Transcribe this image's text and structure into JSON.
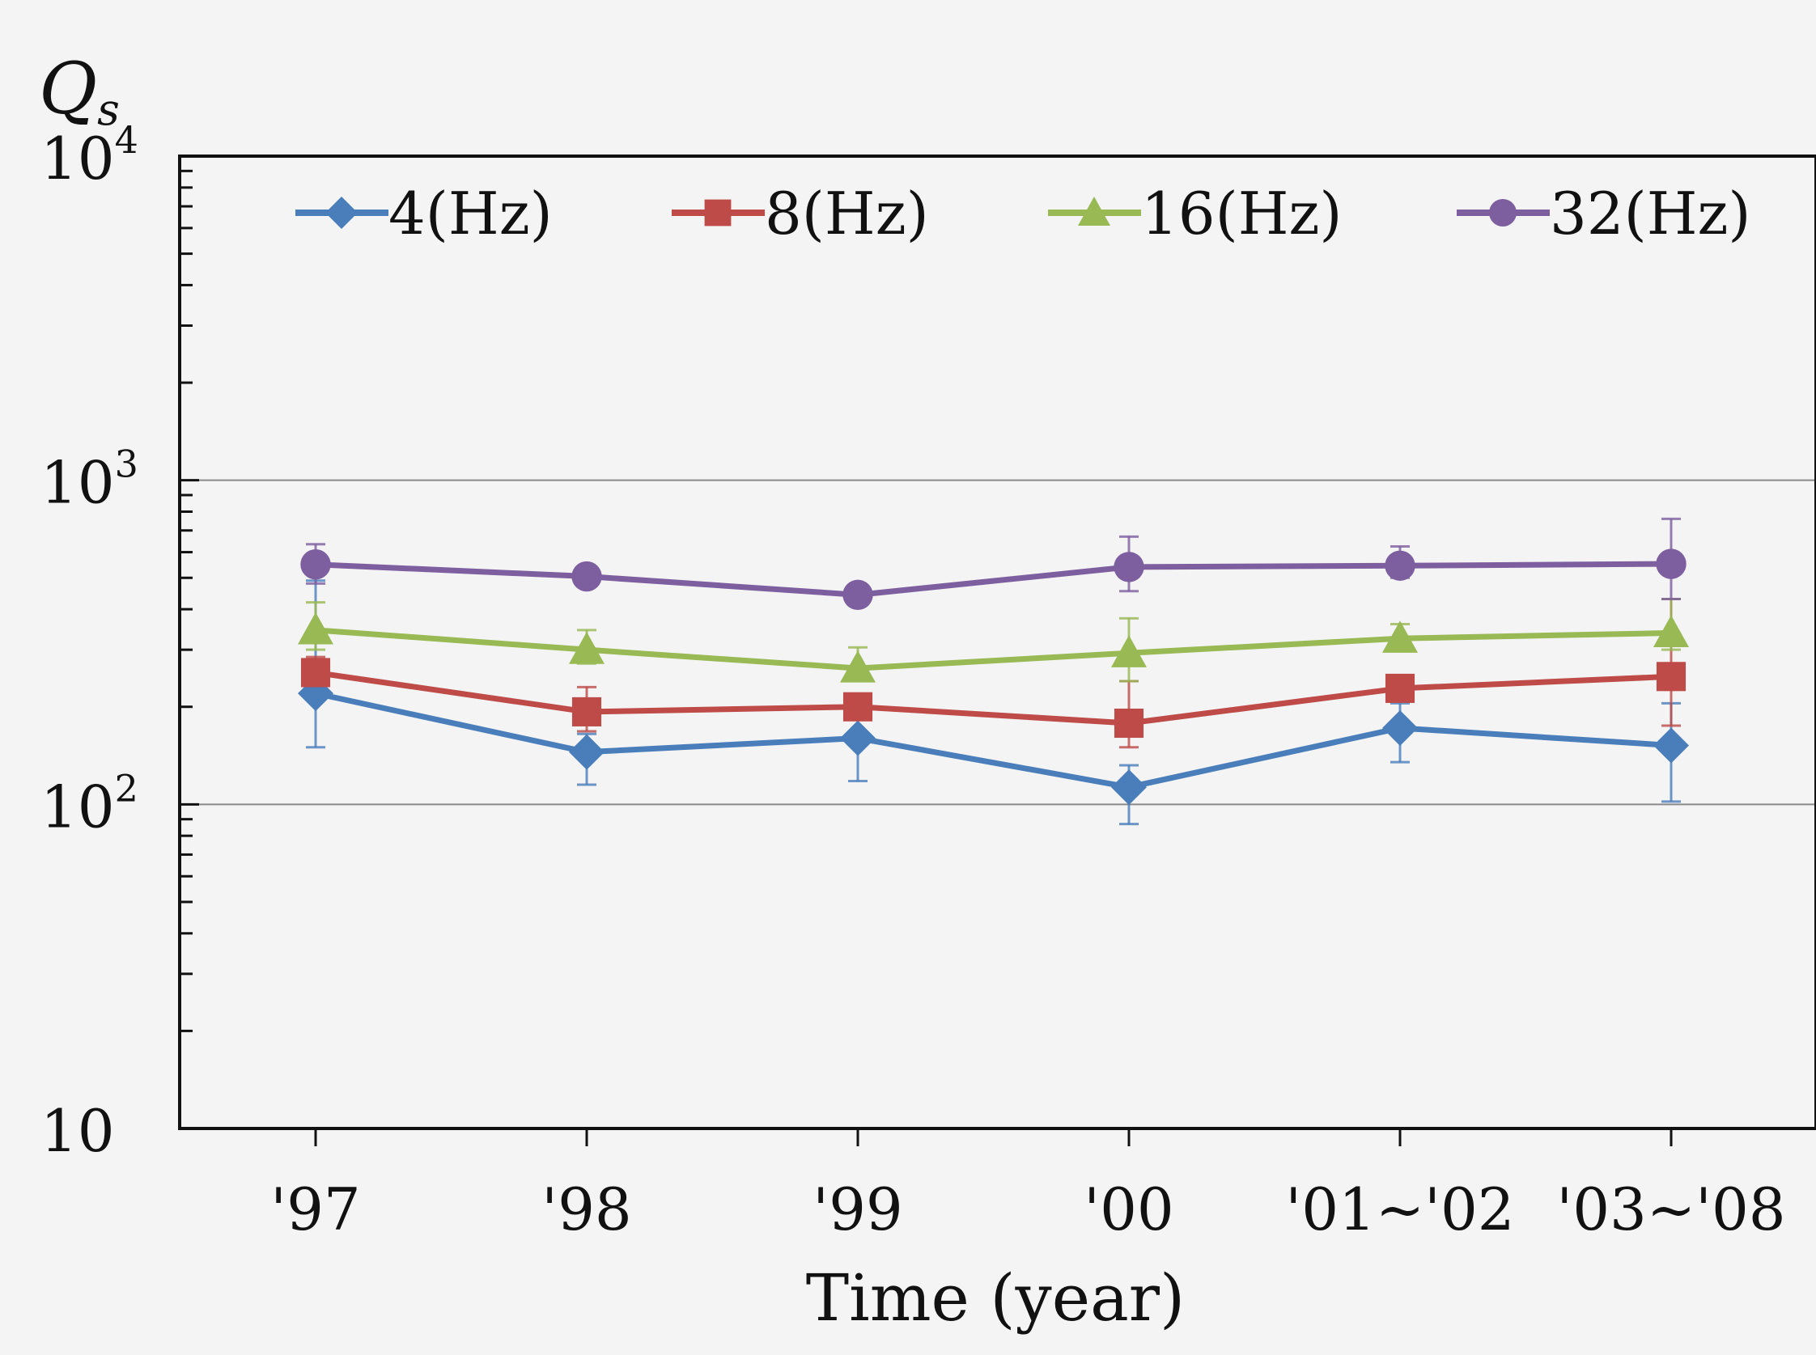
{
  "chart_data": {
    "type": "line",
    "ylabel_symbol": "Q",
    "ylabel_subscript": "s",
    "xlabel": "Time (year)",
    "y_scale": "log",
    "ylim": [
      10,
      10000
    ],
    "y_ticks": [
      {
        "value": 10,
        "base": "10",
        "exp": ""
      },
      {
        "value": 100,
        "base": "10",
        "exp": "2"
      },
      {
        "value": 1000,
        "base": "10",
        "exp": "3"
      },
      {
        "value": 10000,
        "base": "10",
        "exp": "4"
      }
    ],
    "categories": [
      "'97",
      "'98",
      "'99",
      "'00",
      "'01~'02",
      "'03~'08"
    ],
    "grid": "horizontal at 10^2 and 10^3",
    "legend_position": "top, inside plot",
    "series": [
      {
        "name": "4(Hz)",
        "color": "#4a7ebb",
        "marker": "diamond",
        "values": [
          220,
          145,
          160,
          113,
          172,
          152
        ],
        "err_low": [
          150,
          115,
          118,
          87,
          135,
          102
        ],
        "err_high": [
          490,
          165,
          190,
          132,
          205,
          205
        ]
      },
      {
        "name": "8(Hz)",
        "color": "#be4b48",
        "marker": "square",
        "values": [
          255,
          193,
          200,
          178,
          228,
          248
        ],
        "err_low": [
          220,
          168,
          185,
          150,
          215,
          175
        ],
        "err_high": [
          285,
          230,
          215,
          240,
          245,
          430
        ]
      },
      {
        "name": "16(Hz)",
        "color": "#98b954",
        "marker": "triangle",
        "values": [
          345,
          300,
          263,
          293,
          325,
          338
        ],
        "err_low": [
          300,
          272,
          240,
          240,
          305,
          300
        ],
        "err_high": [
          420,
          345,
          305,
          375,
          360,
          430
        ]
      },
      {
        "name": "32(Hz)",
        "color": "#7d5fa0",
        "marker": "circle",
        "values": [
          550,
          505,
          443,
          540,
          545,
          552
        ],
        "err_low": [
          480,
          475,
          420,
          455,
          500,
          430
        ],
        "err_high": [
          635,
          525,
          465,
          670,
          625,
          760
        ]
      }
    ]
  }
}
